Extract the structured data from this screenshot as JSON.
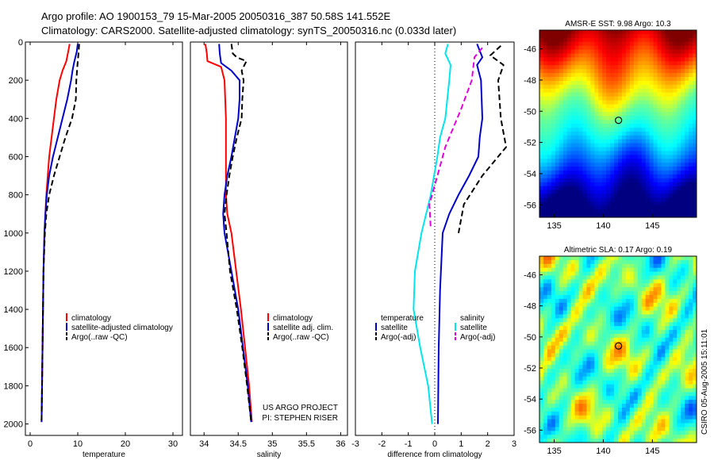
{
  "header": {
    "line1": "Argo profile: AO 1900153_79 15-Mar-2005 20050316_387 50.58S 141.552E",
    "line2": "Climatology: CARS2000. Satellite-adjusted climatology: synTS_20050316.nc (0.033d later)"
  },
  "colors": {
    "red": "#ff0000",
    "blue": "#0000cc",
    "black": "#000000",
    "cyan": "#00e5ee",
    "magenta": "#e000e0"
  },
  "chart_data": [
    {
      "type": "line",
      "xlabel": "temperature",
      "xlim": [
        -1,
        32
      ],
      "ylim": [
        0,
        2060
      ],
      "y_reversed": true,
      "xticks": [
        0,
        10,
        20,
        30
      ],
      "yticks": [
        0,
        200,
        400,
        600,
        800,
        1000,
        1200,
        1400,
        1600,
        1800,
        2000
      ],
      "series": [
        {
          "name": "climatology",
          "color": "red",
          "dash": "none",
          "points": [
            [
              8.3,
              10
            ],
            [
              8,
              50
            ],
            [
              7.6,
              100
            ],
            [
              6.8,
              150
            ],
            [
              6.2,
              200
            ],
            [
              5.5,
              300
            ],
            [
              5,
              400
            ],
            [
              4.5,
              500
            ],
            [
              4,
              600
            ],
            [
              3.7,
              700
            ],
            [
              3.4,
              800
            ],
            [
              3.2,
              900
            ],
            [
              3,
              1000
            ],
            [
              2.8,
              1200
            ],
            [
              2.7,
              1400
            ],
            [
              2.6,
              1600
            ],
            [
              2.5,
              1800
            ],
            [
              2.4,
              1990
            ]
          ]
        },
        {
          "name": "satellite-adjusted climatology",
          "color": "blue",
          "dash": "none",
          "points": [
            [
              10,
              10
            ],
            [
              9.8,
              50
            ],
            [
              9.3,
              100
            ],
            [
              8.9,
              150
            ],
            [
              8.6,
              200
            ],
            [
              7.8,
              300
            ],
            [
              6.8,
              400
            ],
            [
              5.8,
              500
            ],
            [
              4.8,
              600
            ],
            [
              4,
              700
            ],
            [
              3.5,
              800
            ],
            [
              3.2,
              900
            ],
            [
              3,
              1000
            ],
            [
              2.8,
              1200
            ],
            [
              2.7,
              1400
            ],
            [
              2.6,
              1600
            ],
            [
              2.5,
              1800
            ],
            [
              2.4,
              1990
            ]
          ]
        },
        {
          "name": "Argo(..raw -QC)",
          "color": "black",
          "dash": "7,4",
          "points": [
            [
              10.3,
              10
            ],
            [
              10.2,
              50
            ],
            [
              10,
              100
            ],
            [
              9.7,
              200
            ],
            [
              9.6,
              300
            ],
            [
              8.8,
              400
            ],
            [
              7.4,
              500
            ],
            [
              6.2,
              600
            ],
            [
              5,
              700
            ],
            [
              4,
              800
            ],
            [
              3.4,
              900
            ],
            [
              3.1,
              1000
            ],
            [
              2.8,
              1200
            ],
            [
              2.7,
              1400
            ],
            [
              2.6,
              1600
            ],
            [
              2.5,
              1800
            ],
            [
              2.4,
              1990
            ]
          ]
        }
      ],
      "legend": {
        "location": "lower-right",
        "entries": [
          {
            "label": "climatology",
            "color": "red",
            "dash": "none"
          },
          {
            "label": "satellite-adjusted climatology",
            "color": "blue",
            "dash": "none"
          },
          {
            "label": "Argo(..raw -QC)",
            "color": "black",
            "dash": "7,4"
          }
        ]
      }
    },
    {
      "type": "line",
      "xlabel": "salinity",
      "xlim": [
        33.8,
        36.1
      ],
      "ylim": [
        0,
        2060
      ],
      "y_reversed": true,
      "xticks": [
        34,
        34.5,
        35,
        35.5,
        36
      ],
      "yticks": [],
      "series": [
        {
          "name": "climatology",
          "color": "red",
          "dash": "none",
          "points": [
            [
              34.02,
              10
            ],
            [
              34.04,
              60
            ],
            [
              34.05,
              100
            ],
            [
              34.25,
              130
            ],
            [
              34.3,
              200
            ],
            [
              34.32,
              400
            ],
            [
              34.32,
              600
            ],
            [
              34.32,
              800
            ],
            [
              34.34,
              900
            ],
            [
              34.4,
              1000
            ],
            [
              34.47,
              1200
            ],
            [
              34.54,
              1400
            ],
            [
              34.6,
              1600
            ],
            [
              34.66,
              1800
            ],
            [
              34.7,
              1990
            ]
          ]
        },
        {
          "name": "satellite adj. clim.",
          "color": "blue",
          "dash": "none",
          "points": [
            [
              34.22,
              10
            ],
            [
              34.23,
              60
            ],
            [
              34.25,
              110
            ],
            [
              34.4,
              150
            ],
            [
              34.52,
              200
            ],
            [
              34.52,
              300
            ],
            [
              34.5,
              400
            ],
            [
              34.45,
              500
            ],
            [
              34.4,
              600
            ],
            [
              34.34,
              700
            ],
            [
              34.3,
              800
            ],
            [
              34.28,
              900
            ],
            [
              34.3,
              1000
            ],
            [
              34.4,
              1200
            ],
            [
              34.5,
              1400
            ],
            [
              34.57,
              1600
            ],
            [
              34.64,
              1800
            ],
            [
              34.69,
              1990
            ]
          ]
        },
        {
          "name": "Argo(..raw -QC)",
          "color": "black",
          "dash": "7,4",
          "points": [
            [
              34.4,
              10
            ],
            [
              34.42,
              60
            ],
            [
              34.48,
              80
            ],
            [
              34.62,
              100
            ],
            [
              34.55,
              150
            ],
            [
              34.58,
              200
            ],
            [
              34.56,
              300
            ],
            [
              34.55,
              400
            ],
            [
              34.48,
              500
            ],
            [
              34.42,
              600
            ],
            [
              34.37,
              700
            ],
            [
              34.33,
              800
            ],
            [
              34.3,
              900
            ],
            [
              34.33,
              1000
            ],
            [
              34.38,
              1200
            ],
            [
              34.48,
              1400
            ],
            [
              34.56,
              1600
            ],
            [
              34.63,
              1800
            ],
            [
              34.69,
              1990
            ]
          ]
        }
      ],
      "legend": {
        "location": "lower-right",
        "entries": [
          {
            "label": "climatology",
            "color": "red",
            "dash": "none"
          },
          {
            "label": "satellite adj. clim.",
            "color": "blue",
            "dash": "none"
          },
          {
            "label": "Argo(..raw -QC)",
            "color": "black",
            "dash": "7,4"
          }
        ]
      },
      "annotation": [
        "US ARGO PROJECT",
        "PI: STEPHEN RISER"
      ]
    },
    {
      "type": "line",
      "xlabel": "difference from climatology",
      "xlim": [
        -3,
        3
      ],
      "ylim": [
        0,
        2060
      ],
      "y_reversed": true,
      "xticks": [
        -3,
        -2,
        -1,
        0,
        1,
        2,
        3
      ],
      "yticks": [],
      "zero_line": true,
      "series": [
        {
          "name": "temperature satellite",
          "color": "blue",
          "dash": "none",
          "points": [
            [
              1.6,
              10
            ],
            [
              1.8,
              80
            ],
            [
              1.6,
              120
            ],
            [
              1.75,
              200
            ],
            [
              1.8,
              400
            ],
            [
              1.7,
              500
            ],
            [
              1.65,
              600
            ],
            [
              1.3,
              700
            ],
            [
              0.9,
              800
            ],
            [
              0.55,
              900
            ],
            [
              0.3,
              1000
            ],
            [
              0.2,
              1300
            ],
            [
              0.15,
              1600
            ],
            [
              0.12,
              2000
            ]
          ]
        },
        {
          "name": "temperature Argo(-adj)",
          "color": "black",
          "dash": "7,4",
          "points": [
            [
              2.5,
              20
            ],
            [
              2.1,
              70
            ],
            [
              2.6,
              120
            ],
            [
              2.4,
              200
            ],
            [
              2.5,
              400
            ],
            [
              2.7,
              550
            ],
            [
              1.8,
              700
            ],
            [
              1.1,
              850
            ],
            [
              0.9,
              1000
            ]
          ]
        },
        {
          "name": "salinity satellite",
          "color": "cyan",
          "dash": "none",
          "points": [
            [
              0.5,
              10
            ],
            [
              0.4,
              60
            ],
            [
              0.6,
              120
            ],
            [
              0.55,
              200
            ],
            [
              0.4,
              400
            ],
            [
              0.2,
              500
            ],
            [
              0.1,
              600
            ],
            [
              -0.15,
              800
            ],
            [
              -0.5,
              1000
            ],
            [
              -0.75,
              1200
            ],
            [
              -0.8,
              1400
            ],
            [
              -0.55,
              1600
            ],
            [
              -0.25,
              1800
            ],
            [
              -0.1,
              2000
            ]
          ]
        },
        {
          "name": "salinity Argo(-adj)",
          "color": "magenta",
          "dash": "7,4",
          "points": [
            [
              1.8,
              30
            ],
            [
              1.5,
              80
            ],
            [
              1.4,
              200
            ],
            [
              1,
              350
            ],
            [
              0.7,
              450
            ],
            [
              0.4,
              550
            ],
            [
              0.2,
              650
            ],
            [
              0,
              750
            ],
            [
              -0.2,
              850
            ],
            [
              -0.15,
              980
            ]
          ]
        }
      ],
      "legend": {
        "location": "lower",
        "groups": [
          {
            "title": "temperature",
            "entries": [
              {
                "label": "satellite",
                "color": "blue",
                "dash": "none"
              },
              {
                "label": "Argo(-adj)",
                "color": "black",
                "dash": "7,4"
              }
            ]
          },
          {
            "title": "salinity",
            "entries": [
              {
                "label": "satellite",
                "color": "cyan",
                "dash": "none"
              },
              {
                "label": "Argo(-adj)",
                "color": "magenta",
                "dash": "7,4"
              }
            ]
          }
        ]
      }
    },
    {
      "type": "heatmap",
      "title": "AMSR-E SST: 9.98 Argo: 10.3",
      "xlim": [
        133.5,
        149.5
      ],
      "ylim": [
        -56.8,
        -44.8
      ],
      "xticks": [
        135,
        140,
        145
      ],
      "yticks": [
        -46,
        -48,
        -50,
        -52,
        -54,
        -56
      ],
      "marker": {
        "lon": 141.552,
        "lat": -50.58
      },
      "colormap": "jet"
    },
    {
      "type": "heatmap",
      "title": "Altimetric SLA: 0.17 Argo: 0.19",
      "xlim": [
        133.5,
        149.5
      ],
      "ylim": [
        -56.8,
        -44.8
      ],
      "xticks": [
        135,
        140,
        145
      ],
      "yticks": [
        -46,
        -48,
        -50,
        -52,
        -54,
        -56
      ],
      "marker": {
        "lon": 141.552,
        "lat": -50.58
      },
      "colormap": "jet"
    }
  ],
  "footer": {
    "stamp": "CSIRO 05-Aug-2005 15:11:01"
  }
}
